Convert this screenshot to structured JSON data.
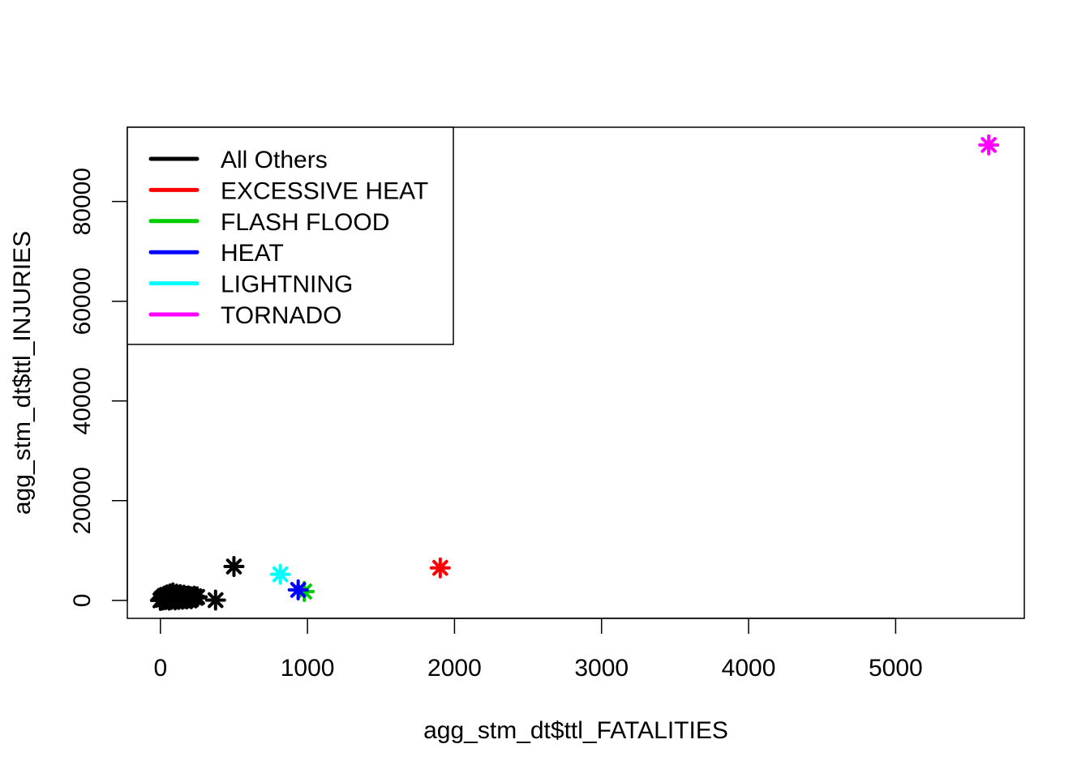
{
  "chart_data": {
    "type": "scatter",
    "title": "",
    "xlabel": "agg_stm_dt$ttl_FATALITIES",
    "ylabel": "agg_stm_dt$ttl_INJURIES",
    "xlim": [
      -225,
      5875
    ],
    "ylim": [
      -3600,
      94900
    ],
    "x_ticks": [
      0,
      1000,
      2000,
      3000,
      4000,
      5000
    ],
    "y_ticks": [
      0,
      20000,
      40000,
      60000,
      80000
    ],
    "x_tick_labels": [
      "0",
      "1000",
      "2000",
      "3000",
      "4000",
      "5000"
    ],
    "y_tick_labels": [
      "0",
      "20000",
      "40000",
      "60000",
      "80000"
    ],
    "marker": "asterisk",
    "grid": false,
    "legend_position": "top-left",
    "legend_style": "lines",
    "series": [
      {
        "name": "All Others",
        "color": "#000000",
        "points": [
          [
            0,
            0
          ],
          [
            5,
            120
          ],
          [
            10,
            350
          ],
          [
            15,
            80
          ],
          [
            20,
            600
          ],
          [
            25,
            250
          ],
          [
            30,
            900
          ],
          [
            35,
            150
          ],
          [
            40,
            450
          ],
          [
            45,
            1100
          ],
          [
            50,
            300
          ],
          [
            55,
            700
          ],
          [
            60,
            50
          ],
          [
            65,
            1300
          ],
          [
            70,
            500
          ],
          [
            75,
            200
          ],
          [
            80,
            850
          ],
          [
            85,
            1500
          ],
          [
            90,
            400
          ],
          [
            95,
            1000
          ],
          [
            100,
            100
          ],
          [
            105,
            650
          ],
          [
            110,
            1250
          ],
          [
            115,
            350
          ],
          [
            120,
            950
          ],
          [
            125,
            200
          ],
          [
            130,
            700
          ],
          [
            135,
            1150
          ],
          [
            140,
            450
          ],
          [
            145,
            850
          ],
          [
            150,
            250
          ],
          [
            155,
            600
          ],
          [
            160,
            1050
          ],
          [
            170,
            400
          ],
          [
            175,
            800
          ],
          [
            180,
            300
          ],
          [
            190,
            900
          ],
          [
            200,
            500
          ],
          [
            205,
            750
          ],
          [
            210,
            350
          ],
          [
            220,
            650
          ],
          [
            230,
            850
          ],
          [
            240,
            500
          ],
          [
            250,
            700
          ],
          [
            375,
            50
          ],
          [
            500,
            6800
          ]
        ]
      },
      {
        "name": "EXCESSIVE HEAT",
        "color": "#ff0000",
        "points": [
          [
            1903,
            6525
          ]
        ]
      },
      {
        "name": "FLASH FLOOD",
        "color": "#00cd00",
        "points": [
          [
            978,
            1777
          ]
        ]
      },
      {
        "name": "HEAT",
        "color": "#0000ff",
        "points": [
          [
            937,
            2100
          ]
        ]
      },
      {
        "name": "LIGHTNING",
        "color": "#00ffff",
        "points": [
          [
            816,
            5230
          ]
        ]
      },
      {
        "name": "TORNADO",
        "color": "#ff00ff",
        "points": [
          [
            5633,
            91346
          ]
        ]
      }
    ]
  }
}
